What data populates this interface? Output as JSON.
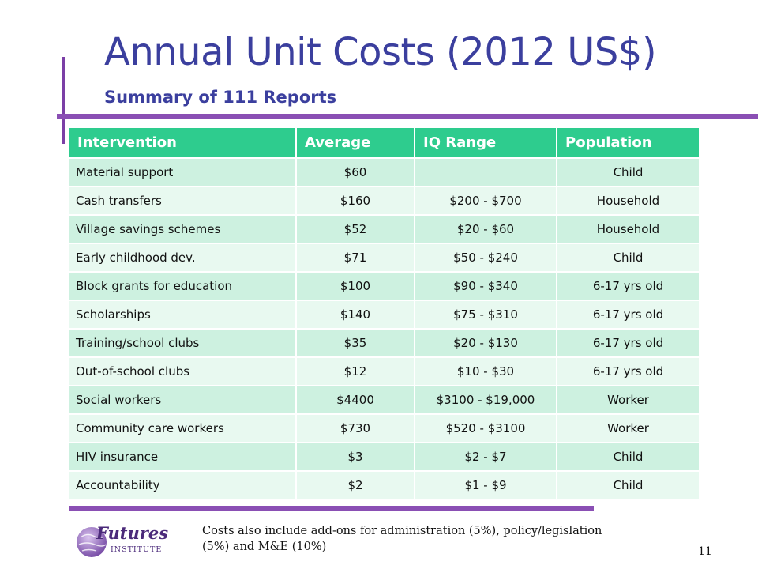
{
  "slide": {
    "title": "Annual Unit Costs (2012 US$)",
    "subtitle": "Summary of 111 Reports",
    "footnote": "Costs also include add-ons for administration (5%), policy/legislation (5%) and M&E (10%)",
    "page_number": "11"
  },
  "logo": {
    "name": "Futures",
    "subtitle": "INSTITUTE",
    "icon": "globe-logo-icon"
  },
  "table": {
    "headers": [
      "Intervention",
      "Average",
      "IQ Range",
      "Population"
    ],
    "rows": [
      [
        "Material support",
        "$60",
        "",
        "Child"
      ],
      [
        "Cash transfers",
        "$160",
        "$200 - $700",
        "Household"
      ],
      [
        "Village savings schemes",
        "$52",
        "$20 - $60",
        "Household"
      ],
      [
        "Early childhood dev.",
        "$71",
        "$50 - $240",
        "Child"
      ],
      [
        "Block grants for education",
        "$100",
        "$90 - $340",
        "6-17 yrs old"
      ],
      [
        "Scholarships",
        "$140",
        "$75 - $310",
        "6-17 yrs old"
      ],
      [
        "Training/school clubs",
        "$35",
        "$20 - $130",
        "6-17 yrs old"
      ],
      [
        "Out-of-school clubs",
        "$12",
        "$10 - $30",
        "6-17 yrs old"
      ],
      [
        "Social workers",
        "$4400",
        "$3100 - $19,000",
        "Worker"
      ],
      [
        "Community care workers",
        "$730",
        "$520 - $3100",
        "Worker"
      ],
      [
        "HIV insurance",
        "$3",
        "$2 - $7",
        "Child"
      ],
      [
        "Accountability",
        "$2",
        "$1 - $9",
        "Child"
      ]
    ]
  },
  "colors": {
    "title": "#3b3f9e",
    "accent_bar": "#8a4fb4",
    "header_bg": "#2ecc8e",
    "row_odd": "#cdf1e0",
    "row_even": "#e8f9f0"
  }
}
